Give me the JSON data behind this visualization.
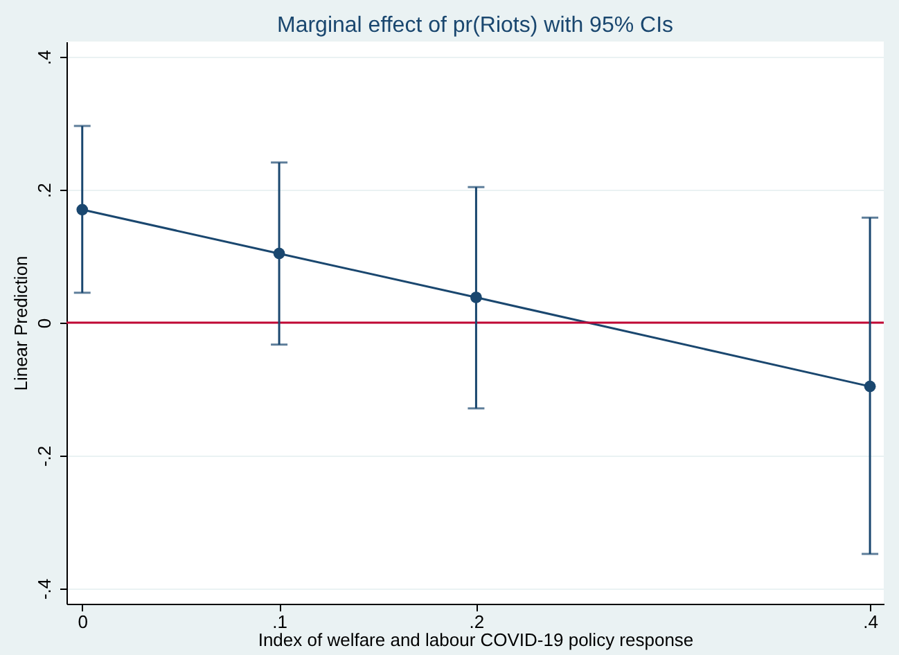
{
  "chart_data": {
    "type": "line",
    "title": "Marginal effect of pr(Riots) with 95% CIs",
    "xlabel": "Index of welfare and labour COVID-19 policy response",
    "ylabel": "Linear Prediction",
    "x": [
      0,
      0.1,
      0.2,
      0.4
    ],
    "series": [
      {
        "color": "#1a476f",
        "values": [
          0.17,
          0.104,
          0.038,
          -0.096
        ],
        "errors": [
          [
            0.045,
            0.296
          ],
          [
            -0.033,
            0.241
          ],
          [
            -0.129,
            0.204
          ],
          [
            -0.348,
            0.158
          ]
        ]
      }
    ],
    "xlim": [
      -0.008,
      0.407
    ],
    "ylim": [
      -0.423,
      0.423
    ],
    "xticks": [
      0,
      {
        "value": 0.1,
        "label": ".1"
      },
      {
        "value": 0.2,
        "label": ".2"
      },
      {
        "value": 0.4,
        "label": ".4"
      }
    ],
    "yticks": [
      {
        "value": -0.4,
        "label": "-.4"
      },
      {
        "value": -0.2,
        "label": "-.2"
      },
      0,
      {
        "value": 0.2,
        "label": ".2"
      },
      {
        "value": 0.4,
        "label": ".4"
      }
    ],
    "ref_lines": [
      {
        "axis": "y",
        "value": 0,
        "color": "#c10534"
      }
    ],
    "grid": "y",
    "marker": "circle",
    "line_style": "solid"
  }
}
